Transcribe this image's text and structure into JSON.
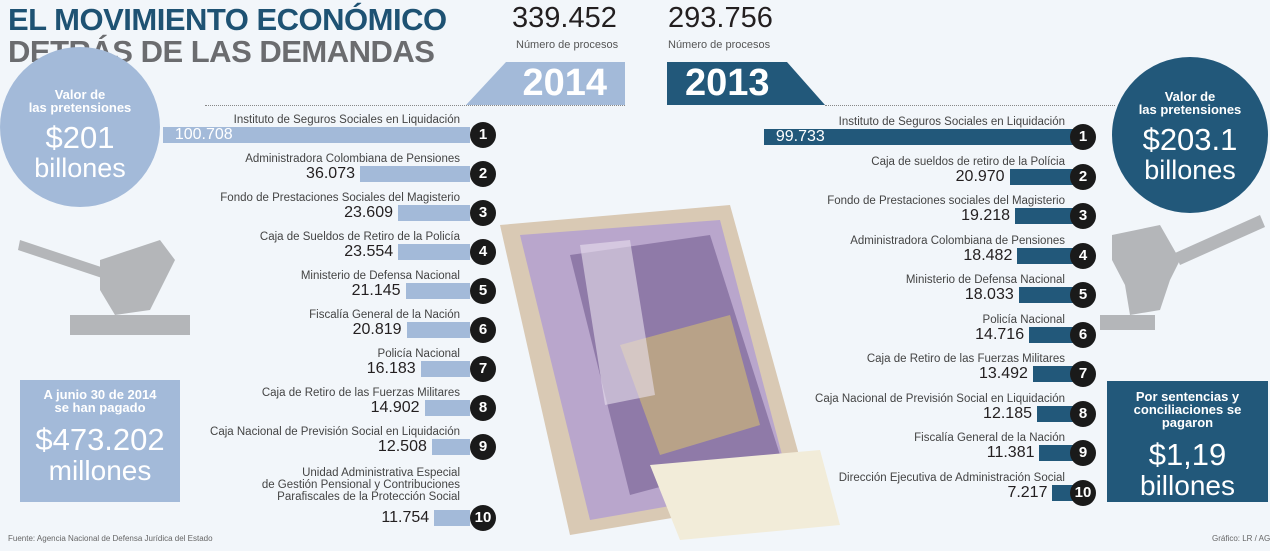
{
  "title": {
    "line1": "EL MOVIMIENTO ECONÓMICO",
    "line2": "DETRÁS DE LAS DEMANDAS"
  },
  "colors": {
    "light_blue": "#a3bad9",
    "dark_blue": "#22587a",
    "title_blue": "#1e5273",
    "gray": "#b4b6b9",
    "number_circle": "#1a1a1a"
  },
  "left": {
    "year": "2014",
    "processes": "339.452",
    "processes_label": "Número de procesos",
    "claims": {
      "title": "Valor de las pretensiones",
      "title_l1": "Valor de",
      "title_l2": "las pretensiones",
      "value": "$201",
      "unit": "billones"
    },
    "paid": {
      "title_l1": "A junio 30 de 2014",
      "title_l2": "se han pagado",
      "value": "$473.202",
      "unit": "millones"
    }
  },
  "right": {
    "year": "2013",
    "processes": "293.756",
    "processes_label": "Número de procesos",
    "claims": {
      "title_l1": "Valor de",
      "title_l2": "las pretensiones",
      "value": "$203.1",
      "unit": "billones"
    },
    "paid": {
      "title_l1": "Por sentencias y",
      "title_l2": "conciliaciones se pagaron",
      "value": "$1,19",
      "unit": "billones"
    }
  },
  "chart_data": [
    {
      "type": "bar",
      "title": "2014",
      "orientation": "horizontal",
      "categories": [
        "Instituto de Seguros Sociales en Liquidación",
        "Administradora Colombiana de Pensiones",
        "Fondo de Prestaciones Sociales del Magisterio",
        "Caja de Sueldos de Retiro de la Policía",
        "Ministerio de Defensa Nacional",
        "Fiscalía General de la Nación",
        "Policía Nacional",
        "Caja de Retiro de las Fuerzas Militares",
        "Caja Nacional de Previsión Social en Liquidación",
        "Unidad Administrativa Especial de Gestión Pensional y Contribuciones Parafiscales de la Protección Social"
      ],
      "category_lines_10": [
        "Unidad Administrativa Especial",
        "de Gestión Pensional y Contribuciones",
        "Parafiscales de la Protección Social"
      ],
      "ranks": [
        "1",
        "2",
        "3",
        "4",
        "5",
        "6",
        "7",
        "8",
        "9",
        "10"
      ],
      "values": [
        100708,
        36073,
        23609,
        23554,
        21145,
        20819,
        16183,
        14902,
        12508,
        11754
      ],
      "labels": [
        "100.708",
        "36.073",
        "23.609",
        "23.554",
        "21.145",
        "20.819",
        "16.183",
        "14.902",
        "12.508",
        "11.754"
      ],
      "color": "#a3bad9"
    },
    {
      "type": "bar",
      "title": "2013",
      "orientation": "horizontal",
      "categories": [
        "Instituto de Seguros Sociales en Liquidación",
        "Caja de sueldos de retiro de la Polícia",
        "Fondo de Prestaciones sociales del Magisterio",
        "Administradora Colombiana de Pensiones",
        "Ministerio de Defensa Nacional",
        "Policía Nacional",
        "Caja de Retiro de las Fuerzas Militares",
        "Caja Nacional de Previsión Social en Liquidación",
        "Fiscalía General de la Nación",
        "Dirección Ejecutiva de Administración Social"
      ],
      "ranks": [
        "1",
        "2",
        "3",
        "4",
        "5",
        "6",
        "7",
        "8",
        "9",
        "10"
      ],
      "values": [
        99733,
        20970,
        19218,
        18482,
        18033,
        14716,
        13492,
        12185,
        11381,
        7217
      ],
      "labels": [
        "99.733",
        "20.970",
        "19.218",
        "18.482",
        "18.033",
        "14.716",
        "13.492",
        "12.185",
        "11.381",
        "7.217"
      ],
      "color": "#22587a"
    }
  ],
  "footer": {
    "source": "Fuente: Agencia Nacional de Defensa Jurídica del Estado",
    "credit": "Gráfico: LR / AG"
  }
}
